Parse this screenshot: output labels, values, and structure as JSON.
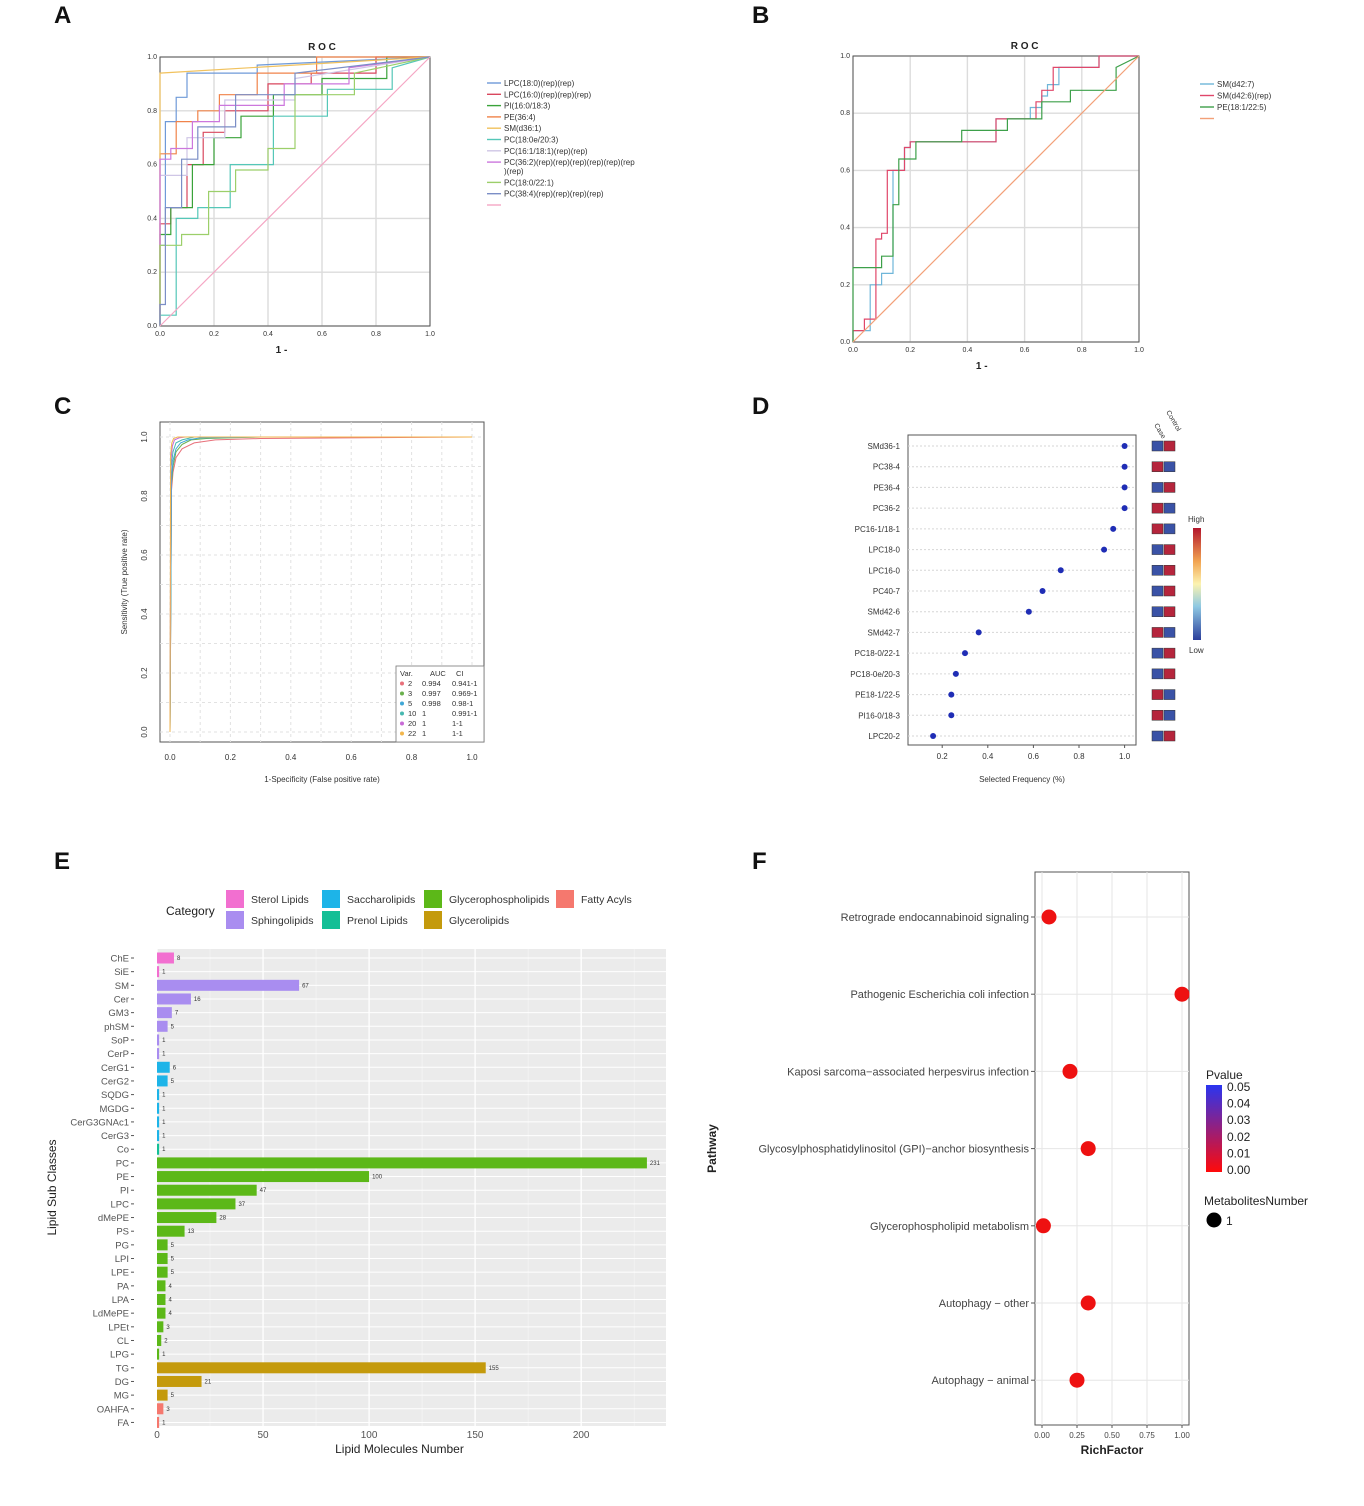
{
  "panels": {
    "a": "A",
    "b": "B",
    "c": "C",
    "d": "D",
    "e": "E",
    "f": "F"
  },
  "chart_data": [
    {
      "id": "A",
      "type": "line",
      "title": "R O C",
      "xlabel": "1 -",
      "ylabel": "",
      "xlim": [
        0,
        1
      ],
      "ylim": [
        0,
        1
      ],
      "xticks": [
        "0.0",
        "0.2",
        "0.4",
        "0.6",
        "0.8",
        "1.0"
      ],
      "yticks": [
        "0.0",
        "0.2",
        "0.4",
        "0.6",
        "0.8",
        "1.0"
      ],
      "series": [
        {
          "name": "LPC(18:0)(rep)(rep)",
          "color": "#6f9ad8",
          "x": [
            0,
            0,
            0.02,
            0.02,
            0.06,
            0.06,
            0.1,
            0.1,
            0.36,
            0.36,
            1
          ],
          "y": [
            0,
            0.3,
            0.3,
            0.76,
            0.76,
            0.85,
            0.85,
            0.94,
            0.94,
            0.97,
            1
          ]
        },
        {
          "name": "LPC(16:0)(rep)(rep)(rep)",
          "color": "#d9475e",
          "x": [
            0,
            0,
            0.04,
            0.04,
            0.1,
            0.1,
            0.16,
            0.16,
            0.24,
            0.24,
            0.4,
            0.4,
            0.56,
            0.56,
            0.8,
            0.8,
            1
          ],
          "y": [
            0,
            0.38,
            0.38,
            0.44,
            0.44,
            0.6,
            0.6,
            0.72,
            0.72,
            0.8,
            0.8,
            0.9,
            0.9,
            0.94,
            0.94,
            1,
            1
          ]
        },
        {
          "name": "PI(16:0/18:3)",
          "color": "#3aa33a",
          "x": [
            0,
            0,
            0.04,
            0.04,
            0.12,
            0.12,
            0.2,
            0.2,
            0.3,
            0.3,
            0.42,
            0.42,
            0.6,
            0.6,
            0.84,
            0.84,
            1
          ],
          "y": [
            0,
            0.34,
            0.34,
            0.44,
            0.44,
            0.6,
            0.6,
            0.7,
            0.7,
            0.78,
            0.78,
            0.86,
            0.86,
            0.92,
            0.92,
            1,
            1
          ]
        },
        {
          "name": "PE(36:4)",
          "color": "#f0834a",
          "x": [
            0,
            0,
            0.06,
            0.06,
            0.14,
            0.14,
            0.22,
            0.22,
            0.36,
            0.36,
            0.58,
            0.58,
            1
          ],
          "y": [
            0,
            0.64,
            0.64,
            0.76,
            0.76,
            0.8,
            0.8,
            0.86,
            0.86,
            0.94,
            0.94,
            1,
            1
          ]
        },
        {
          "name": "SM(d36:1)",
          "color": "#f1c25e",
          "x": [
            0,
            0,
            1
          ],
          "y": [
            0,
            0.94,
            1
          ]
        },
        {
          "name": "PC(18:0e/20:3)",
          "color": "#55c7b8",
          "x": [
            0,
            0,
            0.06,
            0.06,
            0.14,
            0.14,
            0.26,
            0.26,
            0.42,
            0.42,
            0.62,
            0.62,
            0.86,
            0.86,
            1
          ],
          "y": [
            0,
            0.04,
            0.04,
            0.4,
            0.4,
            0.44,
            0.44,
            0.6,
            0.6,
            0.78,
            0.78,
            0.88,
            0.88,
            0.96,
            1
          ]
        },
        {
          "name": "PC(16:1/18:1)(rep)(rep)",
          "color": "#cfc6e6",
          "x": [
            0,
            0,
            0.1,
            0.1,
            0.24,
            0.24,
            0.5,
            0.5,
            1
          ],
          "y": [
            0,
            0.56,
            0.56,
            0.7,
            0.7,
            0.84,
            0.84,
            0.92,
            1
          ]
        },
        {
          "name": "PC(36:2)(rep)(rep)(rep)(rep)(rep)(rep)(rep)",
          "color": "#cc77dd",
          "x": [
            0,
            0,
            0.04,
            0.04,
            0.12,
            0.12,
            0.22,
            0.22,
            0.46,
            0.46,
            0.7,
            0.7,
            1
          ],
          "y": [
            0,
            0.62,
            0.62,
            0.66,
            0.66,
            0.76,
            0.76,
            0.82,
            0.82,
            0.9,
            0.9,
            0.96,
            1
          ]
        },
        {
          "name": "PC(18:0/22:1)",
          "color": "#9ccf6a",
          "x": [
            0,
            0,
            0.08,
            0.08,
            0.18,
            0.18,
            0.28,
            0.28,
            0.4,
            0.4,
            0.5,
            0.5,
            0.72,
            0.72,
            1
          ],
          "y": [
            0,
            0.3,
            0.3,
            0.34,
            0.34,
            0.5,
            0.5,
            0.58,
            0.58,
            0.66,
            0.66,
            0.86,
            0.86,
            0.94,
            1
          ]
        },
        {
          "name": "PC(38:4)(rep)(rep)(rep)(rep)",
          "color": "#7b8ec6",
          "x": [
            0,
            0,
            0.02,
            0.02,
            0.08,
            0.08,
            0.14,
            0.14,
            0.28,
            0.28,
            0.5,
            0.5,
            1
          ],
          "y": [
            0,
            0.08,
            0.08,
            0.44,
            0.44,
            0.62,
            0.62,
            0.74,
            0.74,
            0.86,
            0.86,
            0.94,
            1
          ]
        },
        {
          "name": "",
          "color": "#f5a6c4",
          "x": [
            0,
            1
          ],
          "y": [
            0,
            1
          ]
        }
      ]
    },
    {
      "id": "B",
      "type": "line",
      "title": "R O C",
      "xlabel": "1 -",
      "ylabel": "",
      "xlim": [
        0,
        1
      ],
      "ylim": [
        0,
        1
      ],
      "xticks": [
        "0.0",
        "0.2",
        "0.4",
        "0.6",
        "0.8",
        "1.0"
      ],
      "yticks": [
        "0.0",
        "0.2",
        "0.4",
        "0.6",
        "0.8",
        "1.0"
      ],
      "series": [
        {
          "name": "SM(d42:7)",
          "color": "#6fb6d9",
          "x": [
            0,
            0,
            0.06,
            0.06,
            0.1,
            0.1,
            0.14,
            0.14,
            0.18,
            0.18,
            0.2,
            0.2,
            0.5,
            0.5,
            0.62,
            0.62,
            0.66,
            0.66,
            0.68,
            0.68,
            0.72,
            0.72,
            0.86,
            0.86,
            1
          ],
          "y": [
            0,
            0.04,
            0.04,
            0.2,
            0.2,
            0.24,
            0.24,
            0.6,
            0.6,
            0.68,
            0.68,
            0.7,
            0.7,
            0.78,
            0.78,
            0.82,
            0.82,
            0.86,
            0.86,
            0.9,
            0.9,
            0.96,
            0.96,
            1,
            1
          ]
        },
        {
          "name": "SM(d42:6)(rep)",
          "color": "#e0476a",
          "x": [
            0,
            0,
            0.04,
            0.04,
            0.08,
            0.08,
            0.1,
            0.1,
            0.12,
            0.12,
            0.18,
            0.18,
            0.2,
            0.2,
            0.5,
            0.5,
            0.64,
            0.64,
            0.66,
            0.66,
            0.7,
            0.7,
            0.86,
            0.86,
            1
          ],
          "y": [
            0,
            0.04,
            0.04,
            0.08,
            0.08,
            0.36,
            0.36,
            0.38,
            0.38,
            0.6,
            0.6,
            0.68,
            0.68,
            0.7,
            0.7,
            0.78,
            0.78,
            0.84,
            0.84,
            0.88,
            0.88,
            0.96,
            0.96,
            1,
            1
          ]
        },
        {
          "name": "PE(18:1/22:5)",
          "color": "#3da04a",
          "x": [
            0,
            0,
            0.1,
            0.1,
            0.14,
            0.14,
            0.16,
            0.16,
            0.22,
            0.22,
            0.38,
            0.38,
            0.54,
            0.54,
            0.66,
            0.66,
            0.76,
            0.76,
            0.92,
            0.92,
            1
          ],
          "y": [
            0,
            0.26,
            0.26,
            0.3,
            0.3,
            0.48,
            0.48,
            0.64,
            0.64,
            0.7,
            0.7,
            0.74,
            0.74,
            0.78,
            0.78,
            0.84,
            0.84,
            0.88,
            0.88,
            0.96,
            1
          ]
        },
        {
          "name": "",
          "color": "#f3a078",
          "x": [
            0,
            1
          ],
          "y": [
            0,
            1
          ]
        }
      ]
    },
    {
      "id": "C",
      "type": "line",
      "xlabel": "1-Specificity (False positive rate)",
      "ylabel": "Sensitivity (True positive rate)",
      "xlim": [
        0,
        1
      ],
      "ylim": [
        0,
        1
      ],
      "xticks": [
        "0.0",
        "0.2",
        "0.4",
        "0.6",
        "0.8",
        "1.0"
      ],
      "yticks": [
        "0.0",
        "0.2",
        "0.4",
        "0.6",
        "0.8",
        "1.0"
      ],
      "legend": {
        "header": [
          "Var.",
          "AUC",
          "CI"
        ],
        "rows": [
          [
            "2",
            "0.994",
            "0.941-1"
          ],
          [
            "3",
            "0.997",
            "0.969-1"
          ],
          [
            "5",
            "0.998",
            "0.98-1"
          ],
          [
            "10",
            "1",
            "0.991-1"
          ],
          [
            "20",
            "1",
            "1-1"
          ],
          [
            "22",
            "1",
            "1-1"
          ]
        ]
      },
      "series": [
        {
          "name": "2",
          "color": "#e8707a",
          "x": [
            0,
            0.005,
            0.01,
            0.02,
            0.04,
            0.08,
            0.15,
            0.3,
            1
          ],
          "y": [
            0,
            0.82,
            0.88,
            0.93,
            0.96,
            0.98,
            0.99,
            0.995,
            1
          ]
        },
        {
          "name": "3",
          "color": "#6ab04c",
          "x": [
            0,
            0.005,
            0.01,
            0.02,
            0.04,
            0.07,
            0.12,
            0.3,
            1
          ],
          "y": [
            0,
            0.84,
            0.9,
            0.95,
            0.975,
            0.99,
            0.995,
            1,
            1
          ]
        },
        {
          "name": "5",
          "color": "#3fa7d6",
          "x": [
            0,
            0.005,
            0.01,
            0.02,
            0.035,
            0.06,
            0.1,
            0.3,
            1
          ],
          "y": [
            0,
            0.86,
            0.92,
            0.96,
            0.98,
            0.99,
            0.997,
            1,
            1
          ]
        },
        {
          "name": "10",
          "color": "#46b8b0",
          "x": [
            0,
            0.004,
            0.01,
            0.02,
            0.04,
            0.08,
            1
          ],
          "y": [
            0,
            0.9,
            0.95,
            0.98,
            0.99,
            1,
            1
          ]
        },
        {
          "name": "20",
          "color": "#c86bd6",
          "x": [
            0,
            0.003,
            0.008,
            0.015,
            0.03,
            0.05,
            1
          ],
          "y": [
            0,
            0.92,
            0.97,
            0.99,
            0.997,
            1,
            1
          ]
        },
        {
          "name": "22",
          "color": "#f2b64c",
          "x": [
            0,
            0.002,
            0.006,
            0.012,
            0.025,
            1
          ],
          "y": [
            0,
            0.94,
            0.98,
            0.995,
            1,
            1
          ]
        }
      ]
    },
    {
      "id": "D",
      "type": "scatter",
      "xlabel": "Selected Frequency (%)",
      "xticks": [
        "0.2",
        "0.4",
        "0.6",
        "0.8",
        "1.0"
      ],
      "xlim": [
        0.05,
        1.05
      ],
      "col_headers": [
        "Case",
        "Control"
      ],
      "colorbar": {
        "high": "High",
        "low": "Low"
      },
      "categories": [
        "SMd36-1",
        "PC38-4",
        "PE36-4",
        "PC36-2",
        "PC16-1/18-1",
        "LPC18-0",
        "LPC16-0",
        "PC40-7",
        "SMd42-6",
        "SMd42-7",
        "PC18-0/22-1",
        "PC18-0e/20-3",
        "PE18-1/22-5",
        "PI16-0/18-3",
        "LPC20-2"
      ],
      "values": [
        1.0,
        1.0,
        1.0,
        1.0,
        0.95,
        0.91,
        0.72,
        0.64,
        0.58,
        0.36,
        0.3,
        0.26,
        0.24,
        0.24,
        0.16
      ],
      "heat_case": [
        "#3a52a6",
        "#b5253c",
        "#3a52a6",
        "#b5253c",
        "#b5253c",
        "#3a52a6",
        "#3a52a6",
        "#3a52a6",
        "#3a52a6",
        "#b5253c",
        "#3a52a6",
        "#3a52a6",
        "#b5253c",
        "#b5253c",
        "#3a52a6"
      ],
      "heat_control": [
        "#b5253c",
        "#3a52a6",
        "#b5253c",
        "#3a52a6",
        "#3a52a6",
        "#b5253c",
        "#b5253c",
        "#b5253c",
        "#b5253c",
        "#3a52a6",
        "#b5253c",
        "#b5253c",
        "#3a52a6",
        "#3a52a6",
        "#b5253c"
      ]
    },
    {
      "id": "E",
      "type": "bar",
      "orientation": "horizontal",
      "xlabel": "Lipid Molecules Number",
      "ylabel": "Lipid Sub Classes",
      "xlim": [
        0,
        240
      ],
      "xticks": [
        "0",
        "50",
        "100",
        "150",
        "200"
      ],
      "legend_title": "Category",
      "legend": [
        {
          "name": "Sterol Lipids",
          "color": "#f26fd0"
        },
        {
          "name": "Saccharolipids",
          "color": "#1db4e8"
        },
        {
          "name": "Glycerophospholipids",
          "color": "#5cb818"
        },
        {
          "name": "Fatty Acyls",
          "color": "#f5786e"
        },
        {
          "name": "Sphingolipids",
          "color": "#a98df0"
        },
        {
          "name": "Prenol Lipids",
          "color": "#14bf96"
        },
        {
          "name": "Glycerolipids",
          "color": "#c49a0c"
        }
      ],
      "categories": [
        "ChE",
        "SiE",
        "SM",
        "Cer",
        "GM3",
        "phSM",
        "SoP",
        "CerP",
        "CerG1",
        "CerG2",
        "SQDG",
        "MGDG",
        "CerG3GNAc1",
        "CerG3",
        "Co",
        "PC",
        "PE",
        "PI",
        "LPC",
        "dMePE",
        "PS",
        "PG",
        "LPI",
        "LPE",
        "PA",
        "LPA",
        "LdMePE",
        "LPEt",
        "CL",
        "LPG",
        "TG",
        "DG",
        "MG",
        "OAHFA",
        "FA"
      ],
      "values": [
        8,
        1,
        67,
        16,
        7,
        5,
        1,
        1,
        6,
        5,
        1,
        1,
        1,
        1,
        1,
        231,
        100,
        47,
        37,
        28,
        13,
        5,
        5,
        5,
        4,
        4,
        4,
        3,
        2,
        1,
        155,
        21,
        5,
        3,
        1
      ],
      "labels": [
        "8",
        "1",
        "67",
        "16",
        "7",
        "5",
        "1",
        "1",
        "6",
        "5",
        "1",
        "1",
        "1",
        "1",
        "1",
        "231",
        "100",
        "47",
        "37",
        "28",
        "13",
        "5",
        "5",
        "5",
        "4",
        "4",
        "4",
        "3",
        "2",
        "1",
        "155",
        "21",
        "5",
        "3",
        "1"
      ],
      "bar_colors": [
        "#f26fd0",
        "#f26fd0",
        "#a98df0",
        "#a98df0",
        "#a98df0",
        "#a98df0",
        "#a98df0",
        "#a98df0",
        "#1db4e8",
        "#1db4e8",
        "#1db4e8",
        "#1db4e8",
        "#1db4e8",
        "#1db4e8",
        "#14bf96",
        "#5cb818",
        "#5cb818",
        "#5cb818",
        "#5cb818",
        "#5cb818",
        "#5cb818",
        "#5cb818",
        "#5cb818",
        "#5cb818",
        "#5cb818",
        "#5cb818",
        "#5cb818",
        "#5cb818",
        "#5cb818",
        "#5cb818",
        "#c49a0c",
        "#c49a0c",
        "#c49a0c",
        "#f5786e",
        "#f5786e"
      ]
    },
    {
      "id": "F",
      "type": "scatter",
      "xlabel": "RichFactor",
      "ylabel": "Pathway",
      "xlim": [
        -0.05,
        1.05
      ],
      "xticks": [
        "0.00",
        "0.25",
        "0.50",
        "0.75",
        "1.00"
      ],
      "xtick_values": [
        0,
        0.25,
        0.5,
        0.75,
        1.0
      ],
      "categories": [
        "Retrograde endocannabinoid signaling",
        "Pathogenic Escherichia coli infection",
        "Kaposi sarcoma−associated herpesvirus infection",
        "Glycosylphosphatidylinositol (GPI)−anchor biosynthesis",
        "Glycerophospholipid metabolism",
        "Autophagy − other",
        "Autophagy − animal"
      ],
      "values": [
        0.05,
        1.0,
        0.2,
        0.33,
        0.01,
        0.33,
        0.25
      ],
      "pvalue_legend": {
        "title": "Pvalue",
        "ticks": [
          "0.05",
          "0.04",
          "0.03",
          "0.02",
          "0.01",
          "0.00"
        ]
      },
      "size_legend": {
        "title": "MetabolitesNumber",
        "value": "1"
      },
      "point_color": "#ee1111"
    }
  ]
}
